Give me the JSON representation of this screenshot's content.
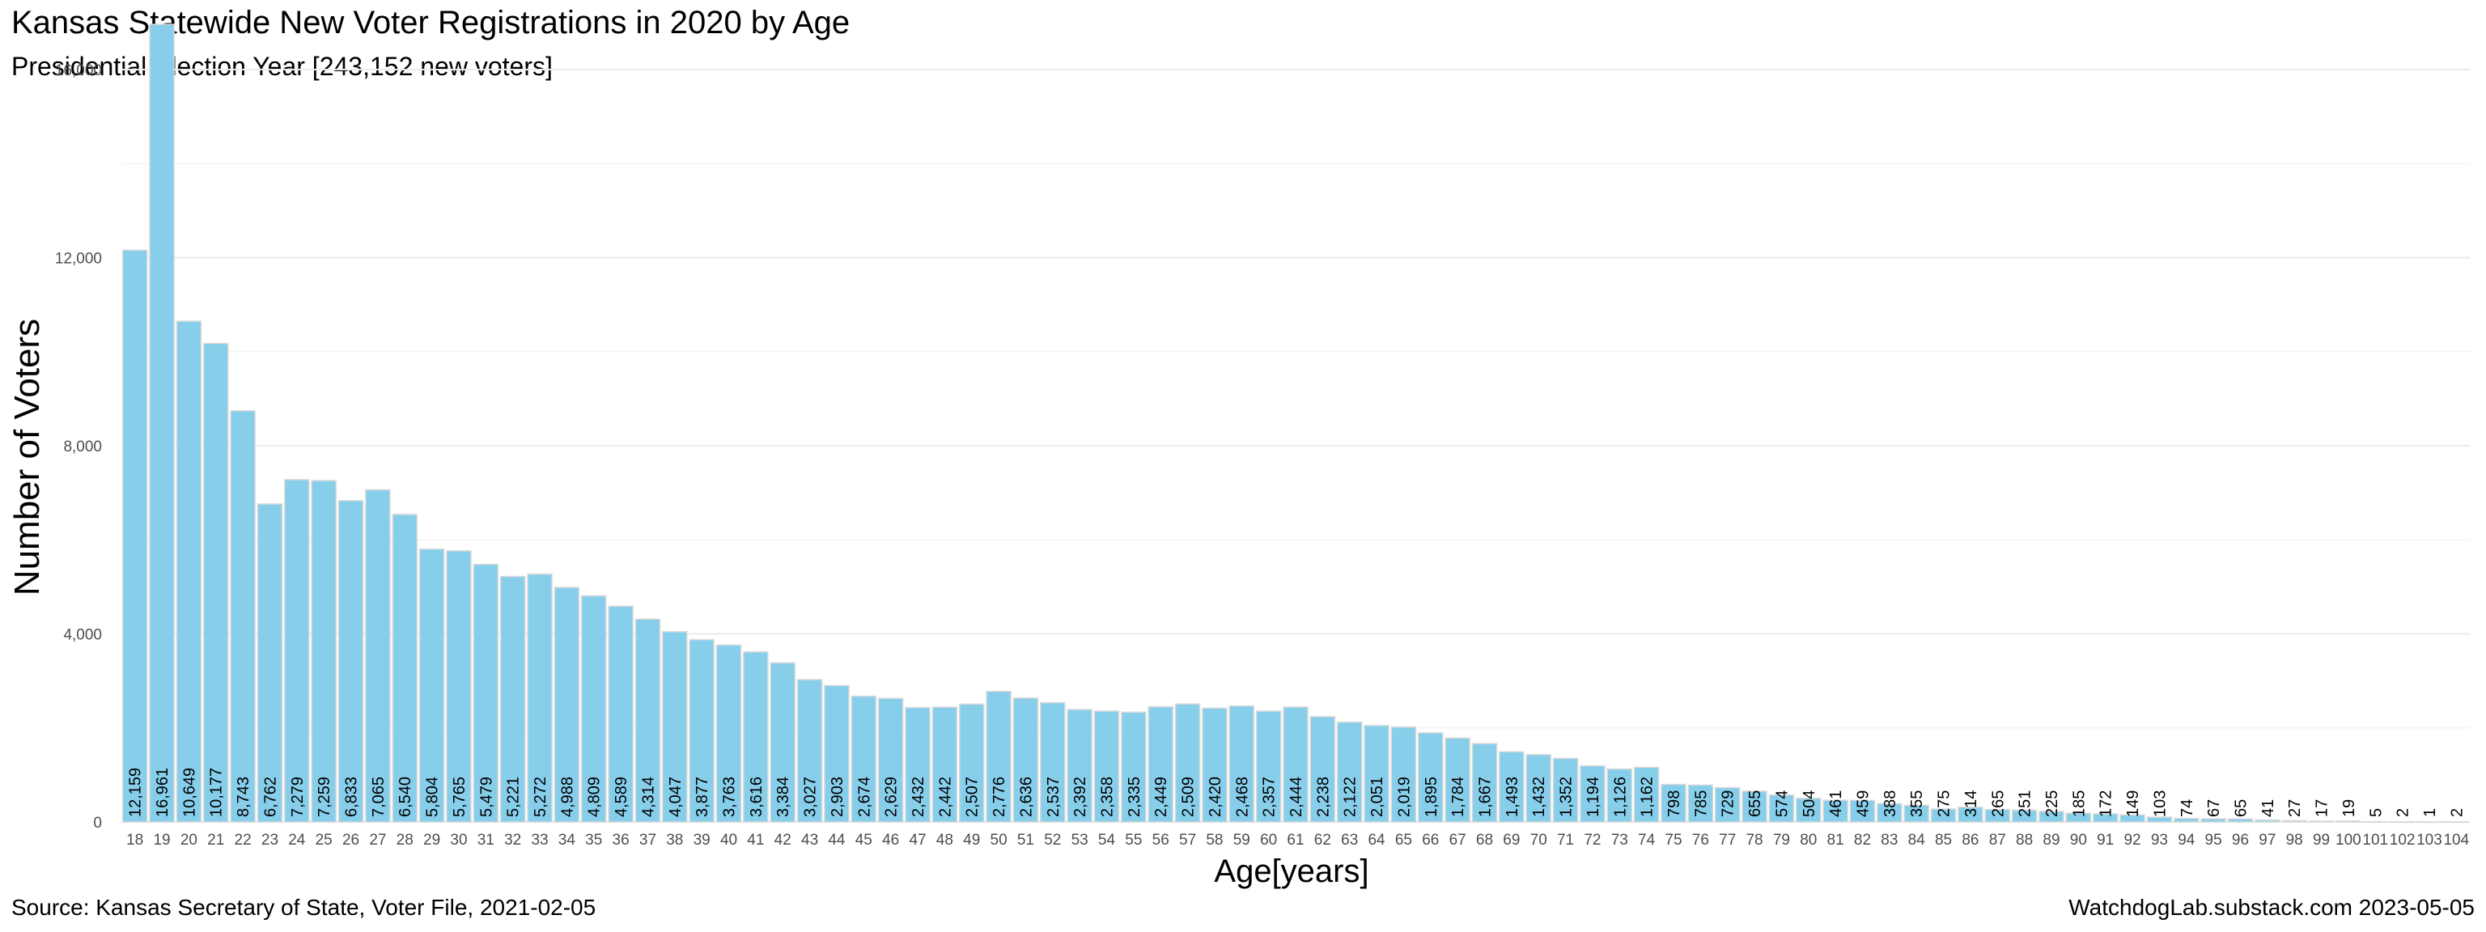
{
  "chart_data": {
    "type": "bar",
    "title": "Kansas Statewide New Voter Registrations in 2020 by Age",
    "subtitle": "Presidential Election Year [243,152 new voters]",
    "xlabel": "Age[years]",
    "ylabel": "Number of Voters",
    "ylim": [
      0,
      17000
    ],
    "yticks": [
      0,
      4000,
      8000,
      12000,
      16000
    ],
    "ytick_labels": [
      "0",
      "4,000",
      "8,000",
      "12,000",
      "16,000"
    ],
    "bar_color": "#87CEEB",
    "bar_edge_color": "#d9d9d9",
    "grid": true,
    "categories": [
      "18",
      "19",
      "20",
      "21",
      "22",
      "23",
      "24",
      "25",
      "26",
      "27",
      "28",
      "29",
      "30",
      "31",
      "32",
      "33",
      "34",
      "35",
      "36",
      "37",
      "38",
      "39",
      "40",
      "41",
      "42",
      "43",
      "44",
      "45",
      "46",
      "47",
      "48",
      "49",
      "50",
      "51",
      "52",
      "53",
      "54",
      "55",
      "56",
      "57",
      "58",
      "59",
      "60",
      "61",
      "62",
      "63",
      "64",
      "65",
      "66",
      "67",
      "68",
      "69",
      "70",
      "71",
      "72",
      "73",
      "74",
      "75",
      "76",
      "77",
      "78",
      "79",
      "80",
      "81",
      "82",
      "83",
      "84",
      "85",
      "86",
      "87",
      "88",
      "89",
      "90",
      "91",
      "92",
      "93",
      "94",
      "95",
      "96",
      "97",
      "98",
      "99",
      "100",
      "101",
      "102",
      "103",
      "104"
    ],
    "values": [
      12159,
      16961,
      10649,
      10177,
      8743,
      6762,
      7279,
      7259,
      6833,
      7065,
      6540,
      5804,
      5765,
      5479,
      5221,
      5272,
      4988,
      4809,
      4589,
      4314,
      4047,
      3877,
      3763,
      3616,
      3384,
      3027,
      2903,
      2674,
      2629,
      2432,
      2442,
      2507,
      2776,
      2636,
      2537,
      2392,
      2358,
      2335,
      2449,
      2509,
      2420,
      2468,
      2357,
      2444,
      2238,
      2122,
      2051,
      2019,
      1895,
      1784,
      1667,
      1493,
      1432,
      1352,
      1194,
      1126,
      1162,
      798,
      785,
      729,
      655,
      574,
      504,
      461,
      459,
      388,
      355,
      275,
      314,
      265,
      251,
      225,
      185,
      172,
      149,
      103,
      74,
      67,
      65,
      41,
      27,
      17,
      19,
      5,
      2,
      1,
      2
    ],
    "labels": [
      "12,159",
      "16,961",
      "10,649",
      "10,177",
      "8,743",
      "6,762",
      "7,279",
      "7,259",
      "6,833",
      "7,065",
      "6,540",
      "5,804",
      "5,765",
      "5,479",
      "5,221",
      "5,272",
      "4,988",
      "4,809",
      "4,589",
      "4,314",
      "4,047",
      "3,877",
      "3,763",
      "3,616",
      "3,384",
      "3,027",
      "2,903",
      "2,674",
      "2,629",
      "2,432",
      "2,442",
      "2,507",
      "2,776",
      "2,636",
      "2,537",
      "2,392",
      "2,358",
      "2,335",
      "2,449",
      "2,509",
      "2,420",
      "2,468",
      "2,357",
      "2,444",
      "2,238",
      "2,122",
      "2,051",
      "2,019",
      "1,895",
      "1,784",
      "1,667",
      "1,493",
      "1,432",
      "1,352",
      "1,194",
      "1,126",
      "1,162",
      "798",
      "785",
      "729",
      "655",
      "574",
      "504",
      "461",
      "459",
      "388",
      "355",
      "275",
      "314",
      "265",
      "251",
      "225",
      "185",
      "172",
      "149",
      "103",
      "74",
      "67",
      "65",
      "41",
      "27",
      "17",
      "19",
      "5",
      "2",
      "1",
      "2"
    ]
  },
  "caption": {
    "source": "Source:  Kansas Secretary of State, Voter File, 2021-02-05",
    "credit": "WatchdogLab.substack.com 2023-05-05"
  }
}
